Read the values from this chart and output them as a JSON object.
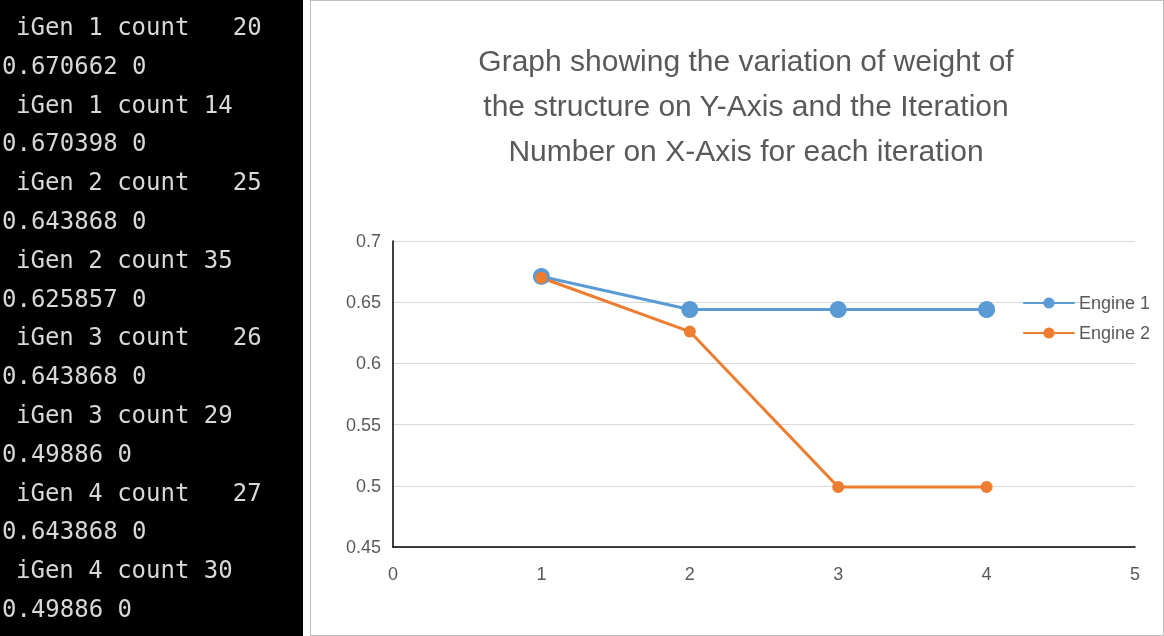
{
  "chart_data": [
    {
      "type": "other",
      "annotations": [
        "iGen 1 count   20",
        "0.670662 0",
        "iGen 1 count 14",
        "0.670398 0",
        "iGen 2 count   25",
        "0.643868 0",
        "iGen 2 count 35",
        "0.625857 0",
        "iGen 3 count   26",
        "0.643868 0",
        "iGen 3 count 29",
        "0.49886 0",
        "iGen 4 count   27",
        "0.643868 0",
        "iGen 4 count 30",
        "0.49886 0"
      ]
    },
    {
      "type": "line",
      "title": "Graph showing the variation of weight of\nthe structure on Y-Axis and the Iteration\nNumber on X-Axis for each iteration",
      "x": [
        1,
        2,
        3,
        4
      ],
      "series": [
        {
          "name": "Engine 1",
          "color": "#5b9bd5",
          "values": [
            0.671,
            0.644,
            0.644,
            0.644
          ]
        },
        {
          "name": "Engine 2",
          "color": "#ed7d31",
          "values": [
            0.67,
            0.626,
            0.499,
            0.499
          ]
        }
      ],
      "xlim": [
        0,
        5
      ],
      "xticks": [
        0,
        1,
        2,
        3,
        4,
        5
      ],
      "ylim": [
        0.45,
        0.7
      ],
      "yticks": [
        0.45,
        0.5,
        0.55,
        0.6,
        0.65,
        0.7
      ],
      "grid": "y",
      "legend": "right",
      "marker": "circle",
      "line_style": "solid"
    }
  ]
}
